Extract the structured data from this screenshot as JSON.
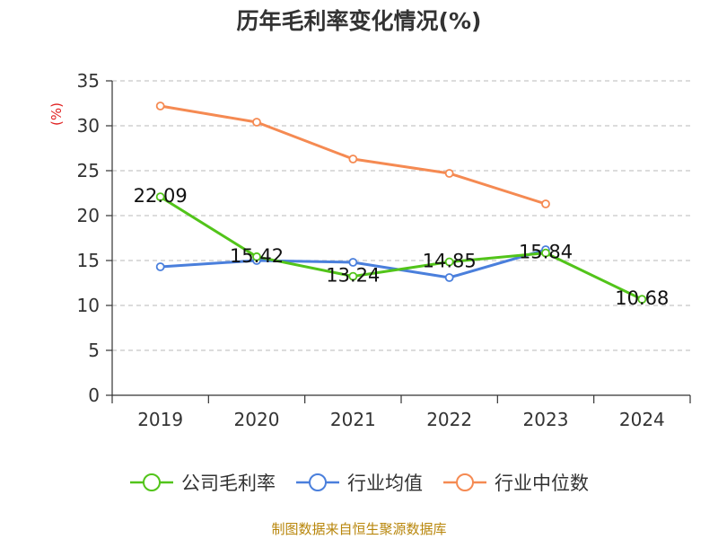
{
  "title": "历年毛利率变化情况(%)",
  "footer": {
    "text": "制图数据来自恒生聚源数据库",
    "color": "#b8860b"
  },
  "colors": {
    "unit_label": "#e02020",
    "grid": "#c8c8c8",
    "axis": "#333333"
  },
  "chart_data": {
    "type": "line",
    "title": "历年毛利率变化情况(%)",
    "ylabel": "(%)",
    "xlabel": "",
    "categories": [
      "2019",
      "2020",
      "2021",
      "2022",
      "2023",
      "2024"
    ],
    "ylim": [
      0,
      35
    ],
    "yticks": [
      0,
      5,
      10,
      15,
      20,
      25,
      30,
      35
    ],
    "grid": "horizontal-dashed",
    "legend_position": "bottom",
    "series": [
      {
        "name": "公司毛利率",
        "color": "#52c41a",
        "values": [
          22.09,
          15.42,
          13.24,
          14.85,
          15.84,
          10.68
        ],
        "labels": [
          "22.09",
          "15.42",
          "13.24",
          "14.85",
          "15.84",
          "10.68"
        ]
      },
      {
        "name": "行业均值",
        "color": "#4a7fdc",
        "values": [
          14.3,
          15.0,
          14.8,
          13.1,
          16.2,
          null
        ]
      },
      {
        "name": "行业中位数",
        "color": "#f58a52",
        "values": [
          32.2,
          30.4,
          26.3,
          24.7,
          21.3,
          null
        ]
      }
    ]
  }
}
